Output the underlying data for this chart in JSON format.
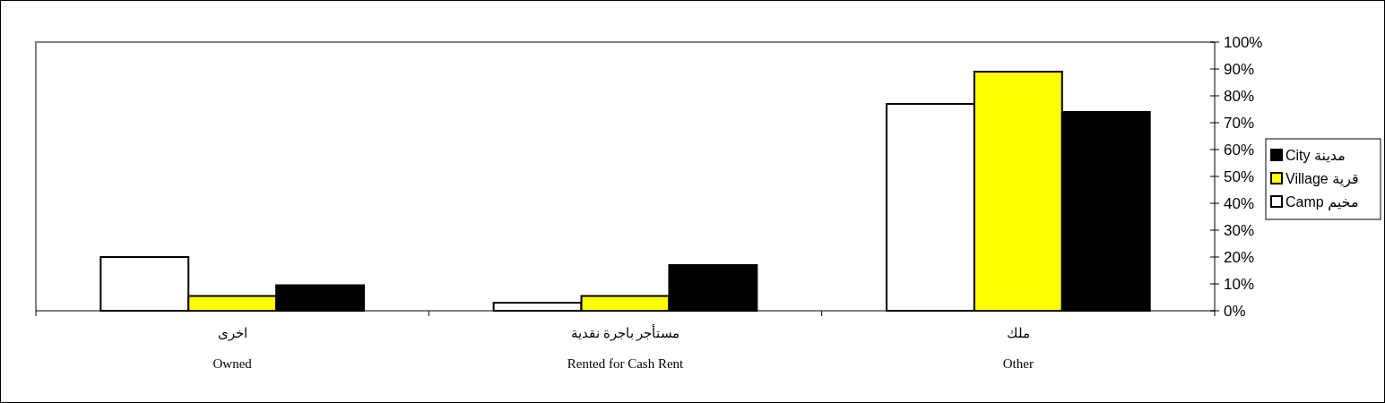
{
  "chart_data": {
    "type": "bar",
    "categories": [
      "اخرى\nOwned",
      "مستأجر باجرة نقدية\nRented for Cash Rent",
      "ملك\nOther"
    ],
    "series": [
      {
        "name": "Camp مخيم",
        "color": "#ffffff",
        "values": [
          20,
          3,
          77
        ]
      },
      {
        "name": "Village قرية",
        "color": "#ffff00",
        "values": [
          5.5,
          5.5,
          89
        ]
      },
      {
        "name": "City مدينة",
        "color": "#000000",
        "values": [
          9.5,
          17,
          74
        ]
      }
    ],
    "ylim": [
      0,
      100
    ],
    "yticks": [
      {
        "value": 0,
        "label": "0%"
      },
      {
        "value": 10,
        "label": "10%"
      },
      {
        "value": 20,
        "label": "20%"
      },
      {
        "value": 30,
        "label": "30%"
      },
      {
        "value": 40,
        "label": "40%"
      },
      {
        "value": 50,
        "label": "50%"
      },
      {
        "value": 60,
        "label": "60%"
      },
      {
        "value": 70,
        "label": "70%"
      },
      {
        "value": 80,
        "label": "80%"
      },
      {
        "value": 90,
        "label": "90%"
      },
      {
        "value": 100,
        "label": "100%"
      }
    ],
    "legend": "right"
  }
}
